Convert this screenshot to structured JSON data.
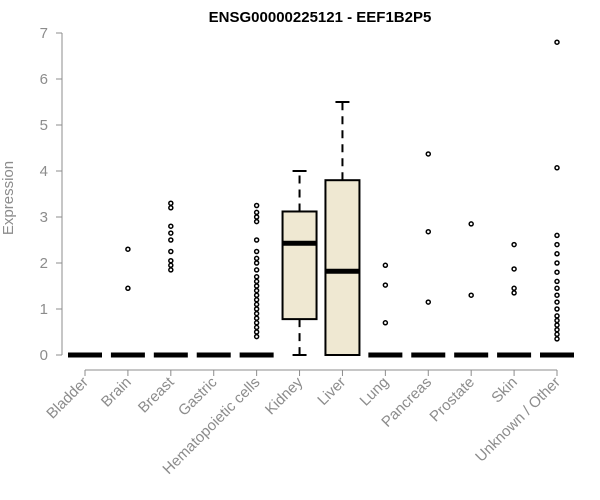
{
  "chart_data": {
    "type": "box",
    "title": "ENSG00000225121 - EEF1B2P5",
    "xlabel": "",
    "ylabel": "Expression",
    "ylim": [
      0,
      7
    ],
    "yticks": [
      0,
      1,
      2,
      3,
      4,
      5,
      6,
      7
    ],
    "categories": [
      "Bladder",
      "Brain",
      "Breast",
      "Gastric",
      "Hematopoietic cells",
      "Kidney",
      "Liver",
      "Lung",
      "Pancreas",
      "Prostate",
      "Skin",
      "Unknown / Other"
    ],
    "box_fill": "#efe8d2",
    "boxes": [
      {
        "category": "Bladder",
        "q1": 0,
        "median": 0,
        "q3": 0,
        "whisker_low": 0,
        "whisker_high": 0,
        "outliers": []
      },
      {
        "category": "Brain",
        "q1": 0,
        "median": 0,
        "q3": 0,
        "whisker_low": 0,
        "whisker_high": 0,
        "outliers": [
          1.45,
          2.3
        ]
      },
      {
        "category": "Breast",
        "q1": 0,
        "median": 0,
        "q3": 0,
        "whisker_low": 0,
        "whisker_high": 0,
        "outliers": [
          1.85,
          1.95,
          2.05,
          2.25,
          2.5,
          2.65,
          2.8,
          3.2,
          3.3
        ]
      },
      {
        "category": "Gastric",
        "q1": 0,
        "median": 0,
        "q3": 0,
        "whisker_low": 0,
        "whisker_high": 0,
        "outliers": []
      },
      {
        "category": "Hematopoietic cells",
        "q1": 0,
        "median": 0,
        "q3": 0,
        "whisker_low": 0,
        "whisker_high": 0,
        "outliers": [
          0.4,
          0.5,
          0.6,
          0.7,
          0.8,
          0.9,
          1.0,
          1.1,
          1.2,
          1.3,
          1.4,
          1.5,
          1.6,
          1.7,
          1.85,
          2.0,
          2.1,
          2.25,
          2.5,
          2.9,
          3.0,
          3.1,
          3.25
        ]
      },
      {
        "category": "Kidney",
        "q1": 0.78,
        "median": 2.43,
        "q3": 3.12,
        "whisker_low": 0,
        "whisker_high": 4.0,
        "outliers": []
      },
      {
        "category": "Liver",
        "q1": 0,
        "median": 1.82,
        "q3": 3.8,
        "whisker_low": 0,
        "whisker_high": 5.5,
        "outliers": []
      },
      {
        "category": "Lung",
        "q1": 0,
        "median": 0,
        "q3": 0,
        "whisker_low": 0,
        "whisker_high": 0,
        "outliers": [
          0.7,
          1.52,
          1.95
        ]
      },
      {
        "category": "Pancreas",
        "q1": 0,
        "median": 0,
        "q3": 0,
        "whisker_low": 0,
        "whisker_high": 0,
        "outliers": [
          1.15,
          2.68,
          4.37
        ]
      },
      {
        "category": "Prostate",
        "q1": 0,
        "median": 0,
        "q3": 0,
        "whisker_low": 0,
        "whisker_high": 0,
        "outliers": [
          1.3,
          2.85
        ]
      },
      {
        "category": "Skin",
        "q1": 0,
        "median": 0,
        "q3": 0,
        "whisker_low": 0,
        "whisker_high": 0,
        "outliers": [
          1.35,
          1.45,
          1.87,
          2.4
        ]
      },
      {
        "category": "Unknown / Other",
        "q1": 0,
        "median": 0,
        "q3": 0,
        "whisker_low": 0,
        "whisker_high": 0,
        "outliers": [
          0.35,
          0.45,
          0.55,
          0.65,
          0.75,
          0.85,
          1.0,
          1.15,
          1.3,
          1.45,
          1.6,
          1.8,
          2.0,
          2.2,
          2.4,
          2.6,
          4.07,
          6.8
        ]
      }
    ]
  }
}
